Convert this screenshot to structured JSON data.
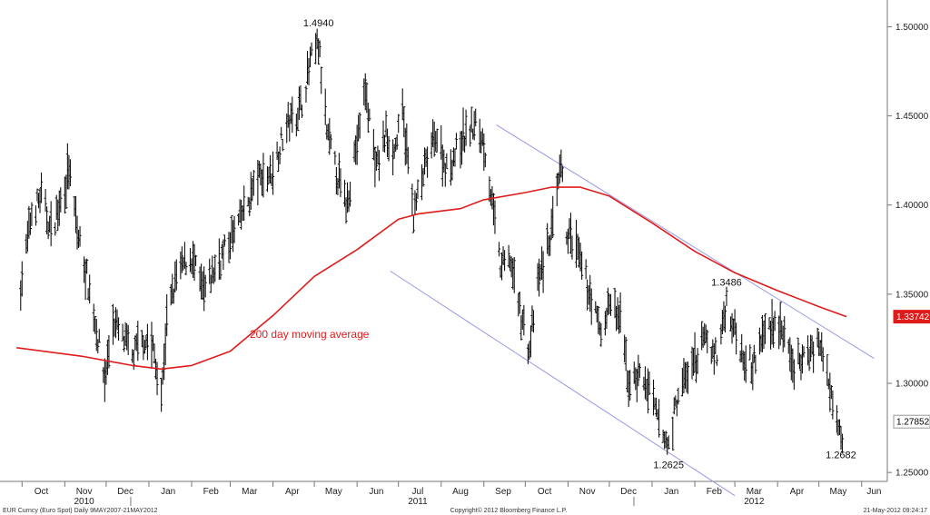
{
  "chart_data": {
    "type": "line",
    "description_series": "OHLC daily bars of EUR/USD with 200 day moving average",
    "x_ticks": [
      "Oct",
      "Nov",
      "Dec",
      "Jan",
      "Feb",
      "Mar",
      "Apr",
      "May",
      "Jun",
      "Jul",
      "Aug",
      "Sep",
      "Oct",
      "Nov",
      "Dec",
      "Jan",
      "Feb",
      "Mar",
      "Apr",
      "May",
      "Jun"
    ],
    "years": [
      "2010",
      "2011",
      "2012"
    ],
    "y_ticks": [
      "1.50000",
      "1.45000",
      "1.40000",
      "1.35000",
      "1.30000",
      "1.25000"
    ],
    "ylim": [
      1.245,
      1.515
    ],
    "price_path": [
      {
        "x": "2010-09-30",
        "y": 1.355
      },
      {
        "x": "2010-10-08",
        "y": 1.395
      },
      {
        "x": "2010-10-15",
        "y": 1.405
      },
      {
        "x": "2010-10-22",
        "y": 1.385
      },
      {
        "x": "2010-10-29",
        "y": 1.402
      },
      {
        "x": "2010-11-04",
        "y": 1.42
      },
      {
        "x": "2010-11-10",
        "y": 1.385
      },
      {
        "x": "2010-11-17",
        "y": 1.36
      },
      {
        "x": "2010-11-24",
        "y": 1.33
      },
      {
        "x": "2010-11-30",
        "y": 1.302
      },
      {
        "x": "2010-12-06",
        "y": 1.335
      },
      {
        "x": "2010-12-13",
        "y": 1.325
      },
      {
        "x": "2010-12-20",
        "y": 1.315
      },
      {
        "x": "2010-12-28",
        "y": 1.325
      },
      {
        "x": "2011-01-04",
        "y": 1.32
      },
      {
        "x": "2011-01-10",
        "y": 1.292
      },
      {
        "x": "2011-01-14",
        "y": 1.335
      },
      {
        "x": "2011-01-21",
        "y": 1.36
      },
      {
        "x": "2011-01-31",
        "y": 1.372
      },
      {
        "x": "2011-02-10",
        "y": 1.35
      },
      {
        "x": "2011-02-18",
        "y": 1.365
      },
      {
        "x": "2011-03-01",
        "y": 1.38
      },
      {
        "x": "2011-03-10",
        "y": 1.395
      },
      {
        "x": "2011-03-21",
        "y": 1.415
      },
      {
        "x": "2011-03-31",
        "y": 1.418
      },
      {
        "x": "2011-04-11",
        "y": 1.445
      },
      {
        "x": "2011-04-21",
        "y": 1.455
      },
      {
        "x": "2011-04-29",
        "y": 1.482
      },
      {
        "x": "2011-05-04",
        "y": 1.49
      },
      {
        "x": "2011-05-10",
        "y": 1.44
      },
      {
        "x": "2011-05-20",
        "y": 1.41
      },
      {
        "x": "2011-05-24",
        "y": 1.4
      },
      {
        "x": "2011-06-02",
        "y": 1.44
      },
      {
        "x": "2011-06-07",
        "y": 1.465
      },
      {
        "x": "2011-06-15",
        "y": 1.42
      },
      {
        "x": "2011-06-22",
        "y": 1.44
      },
      {
        "x": "2011-06-28",
        "y": 1.43
      },
      {
        "x": "2011-07-04",
        "y": 1.452
      },
      {
        "x": "2011-07-12",
        "y": 1.395
      },
      {
        "x": "2011-07-20",
        "y": 1.42
      },
      {
        "x": "2011-07-28",
        "y": 1.44
      },
      {
        "x": "2011-08-05",
        "y": 1.42
      },
      {
        "x": "2011-08-12",
        "y": 1.43
      },
      {
        "x": "2011-08-19",
        "y": 1.44
      },
      {
        "x": "2011-08-26",
        "y": 1.445
      },
      {
        "x": "2011-09-01",
        "y": 1.435
      },
      {
        "x": "2011-09-08",
        "y": 1.395
      },
      {
        "x": "2011-09-13",
        "y": 1.365
      },
      {
        "x": "2011-09-20",
        "y": 1.37
      },
      {
        "x": "2011-09-26",
        "y": 1.345
      },
      {
        "x": "2011-10-04",
        "y": 1.318
      },
      {
        "x": "2011-10-10",
        "y": 1.355
      },
      {
        "x": "2011-10-20",
        "y": 1.385
      },
      {
        "x": "2011-10-27",
        "y": 1.42
      },
      {
        "x": "2011-10-31",
        "y": 1.385
      },
      {
        "x": "2011-11-07",
        "y": 1.375
      },
      {
        "x": "2011-11-15",
        "y": 1.355
      },
      {
        "x": "2011-11-25",
        "y": 1.328
      },
      {
        "x": "2011-12-01",
        "y": 1.345
      },
      {
        "x": "2011-12-09",
        "y": 1.335
      },
      {
        "x": "2011-12-15",
        "y": 1.3
      },
      {
        "x": "2011-12-23",
        "y": 1.305
      },
      {
        "x": "2011-12-30",
        "y": 1.295
      },
      {
        "x": "2012-01-09",
        "y": 1.27
      },
      {
        "x": "2012-01-13",
        "y": 1.265
      },
      {
        "x": "2012-01-20",
        "y": 1.295
      },
      {
        "x": "2012-01-31",
        "y": 1.31
      },
      {
        "x": "2012-02-08",
        "y": 1.325
      },
      {
        "x": "2012-02-17",
        "y": 1.315
      },
      {
        "x": "2012-02-24",
        "y": 1.345
      },
      {
        "x": "2012-03-05",
        "y": 1.32
      },
      {
        "x": "2012-03-14",
        "y": 1.31
      },
      {
        "x": "2012-03-23",
        "y": 1.33
      },
      {
        "x": "2012-04-02",
        "y": 1.335
      },
      {
        "x": "2012-04-11",
        "y": 1.31
      },
      {
        "x": "2012-04-19",
        "y": 1.312
      },
      {
        "x": "2012-04-30",
        "y": 1.325
      },
      {
        "x": "2012-05-07",
        "y": 1.305
      },
      {
        "x": "2012-05-14",
        "y": 1.285
      },
      {
        "x": "2012-05-18",
        "y": 1.27
      },
      {
        "x": "2012-05-21",
        "y": 1.2785
      }
    ],
    "moving_average": [
      {
        "x": "2010-09-27",
        "y": 1.32
      },
      {
        "x": "2010-11-15",
        "y": 1.315
      },
      {
        "x": "2010-12-20",
        "y": 1.31
      },
      {
        "x": "2011-01-10",
        "y": 1.308
      },
      {
        "x": "2011-02-01",
        "y": 1.31
      },
      {
        "x": "2011-03-01",
        "y": 1.318
      },
      {
        "x": "2011-04-01",
        "y": 1.338
      },
      {
        "x": "2011-05-01",
        "y": 1.36
      },
      {
        "x": "2011-06-01",
        "y": 1.375
      },
      {
        "x": "2011-07-01",
        "y": 1.392
      },
      {
        "x": "2011-07-15",
        "y": 1.395
      },
      {
        "x": "2011-08-15",
        "y": 1.398
      },
      {
        "x": "2011-09-01",
        "y": 1.403
      },
      {
        "x": "2011-10-01",
        "y": 1.407
      },
      {
        "x": "2011-10-20",
        "y": 1.41
      },
      {
        "x": "2011-11-10",
        "y": 1.41
      },
      {
        "x": "2011-12-01",
        "y": 1.405
      },
      {
        "x": "2012-01-01",
        "y": 1.39
      },
      {
        "x": "2012-02-01",
        "y": 1.374
      },
      {
        "x": "2012-03-01",
        "y": 1.362
      },
      {
        "x": "2012-04-01",
        "y": 1.352
      },
      {
        "x": "2012-05-01",
        "y": 1.343
      },
      {
        "x": "2012-05-21",
        "y": 1.3374
      }
    ],
    "channel_upper": [
      {
        "x": "2011-09-10",
        "y": 1.445
      },
      {
        "x": "2012-06-10",
        "y": 1.314
      }
    ],
    "channel_lower": [
      {
        "x": "2011-06-25",
        "y": 1.363
      },
      {
        "x": "2012-03-01",
        "y": 1.237
      }
    ],
    "annotations": [
      {
        "text": "1.4940",
        "x": "2011-05-04",
        "y": 1.494,
        "pos": "above"
      },
      {
        "text": "1.3486",
        "x": "2012-02-24",
        "y": 1.3486,
        "pos": "above"
      },
      {
        "text": "1.2625",
        "x": "2012-01-13",
        "y": 1.2625,
        "pos": "below"
      },
      {
        "text": "1.2682",
        "x": "2012-05-17",
        "y": 1.2682,
        "pos": "below"
      }
    ],
    "ma_label": "200 day moving average",
    "last_price_tags": [
      {
        "text": "1.33742",
        "y": 1.3374,
        "color": "#e01b1b",
        "text_color": "#ffffff"
      },
      {
        "text": "1.27852",
        "y": 1.27852,
        "color": "#ffffff",
        "text_color": "#000000"
      }
    ],
    "footer": {
      "left": "EUR Curncy (Euro Spot) Daily 9MAY2007-21MAY2012",
      "center": "Copyright© 2012 Bloomberg Finance L.P.",
      "right": "21-May-2012 09:24:17"
    },
    "colors": {
      "price": "#111111",
      "ma": "#e01b1b",
      "channel": "#9a9ae6",
      "axis": "#777777"
    }
  }
}
